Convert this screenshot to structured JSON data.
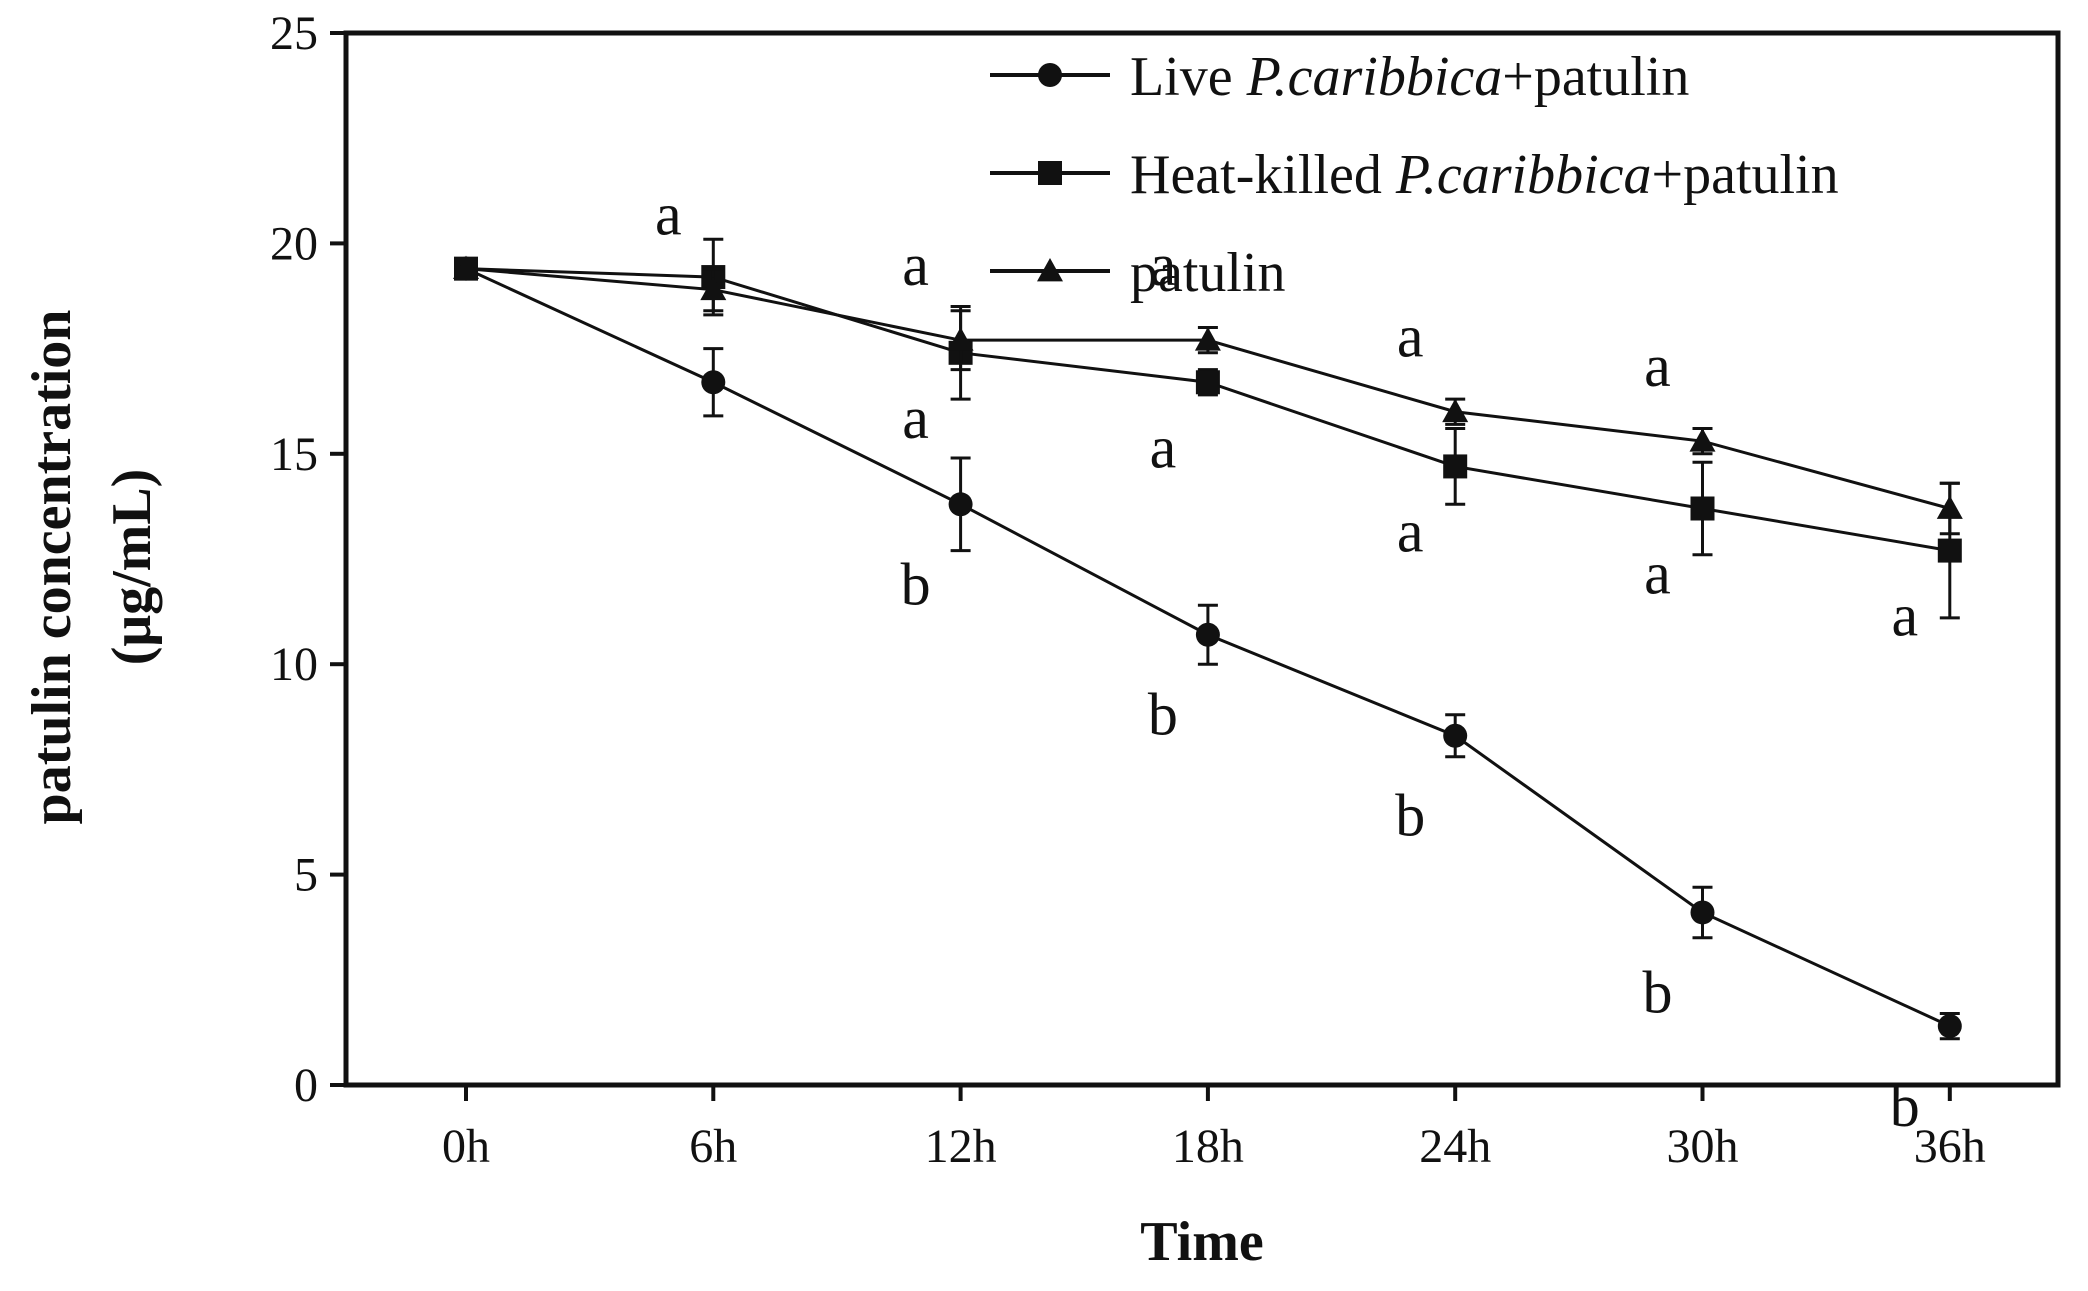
{
  "chart_data": {
    "type": "line",
    "title": "",
    "xlabel": "Time",
    "ylabel_line1": "patulin concentration",
    "ylabel_line2": "(μg/mL)",
    "categories": [
      "0h",
      "6h",
      "12h",
      "18h",
      "24h",
      "30h",
      "36h"
    ],
    "ylim": [
      0,
      25
    ],
    "yticks": [
      0,
      5,
      10,
      15,
      20,
      25
    ],
    "grid": false,
    "legend_position": "top-right",
    "series": [
      {
        "name": "Live P.caribbica+patulin",
        "legend_parts": [
          {
            "text": "Live ",
            "italic": false
          },
          {
            "text": "P.caribbica",
            "italic": true
          },
          {
            "text": "+patulin",
            "italic": false
          }
        ],
        "marker": "circle",
        "values": [
          19.4,
          16.7,
          13.8,
          10.7,
          8.3,
          4.1,
          1.4
        ],
        "errors": [
          0,
          0.8,
          1.1,
          0.7,
          0.5,
          0.6,
          0.3
        ],
        "letters": [
          "",
          "",
          "b",
          "b",
          "b",
          "b",
          "b"
        ]
      },
      {
        "name": "Heat-killed P.caribbica+patulin",
        "legend_parts": [
          {
            "text": "Heat-killed ",
            "italic": false
          },
          {
            "text": "P.caribbica",
            "italic": true
          },
          {
            "text": "+patulin",
            "italic": false
          }
        ],
        "marker": "square",
        "values": [
          19.4,
          19.2,
          17.4,
          16.7,
          14.7,
          13.7,
          12.7
        ],
        "errors": [
          0,
          0.9,
          1.1,
          0.3,
          0.9,
          1.1,
          1.6
        ],
        "letters": [
          "",
          "",
          "a",
          "a",
          "a",
          "a",
          "a"
        ]
      },
      {
        "name": "patulin",
        "legend_parts": [
          {
            "text": "patulin",
            "italic": false
          }
        ],
        "marker": "triangle",
        "values": [
          19.4,
          18.9,
          17.7,
          17.7,
          16.0,
          15.3,
          13.7
        ],
        "errors": [
          0,
          0.5,
          0.7,
          0.3,
          0.3,
          0.3,
          0.6
        ],
        "letters": [
          "",
          "a",
          "a",
          "a",
          "a",
          "a",
          ""
        ]
      }
    ]
  }
}
